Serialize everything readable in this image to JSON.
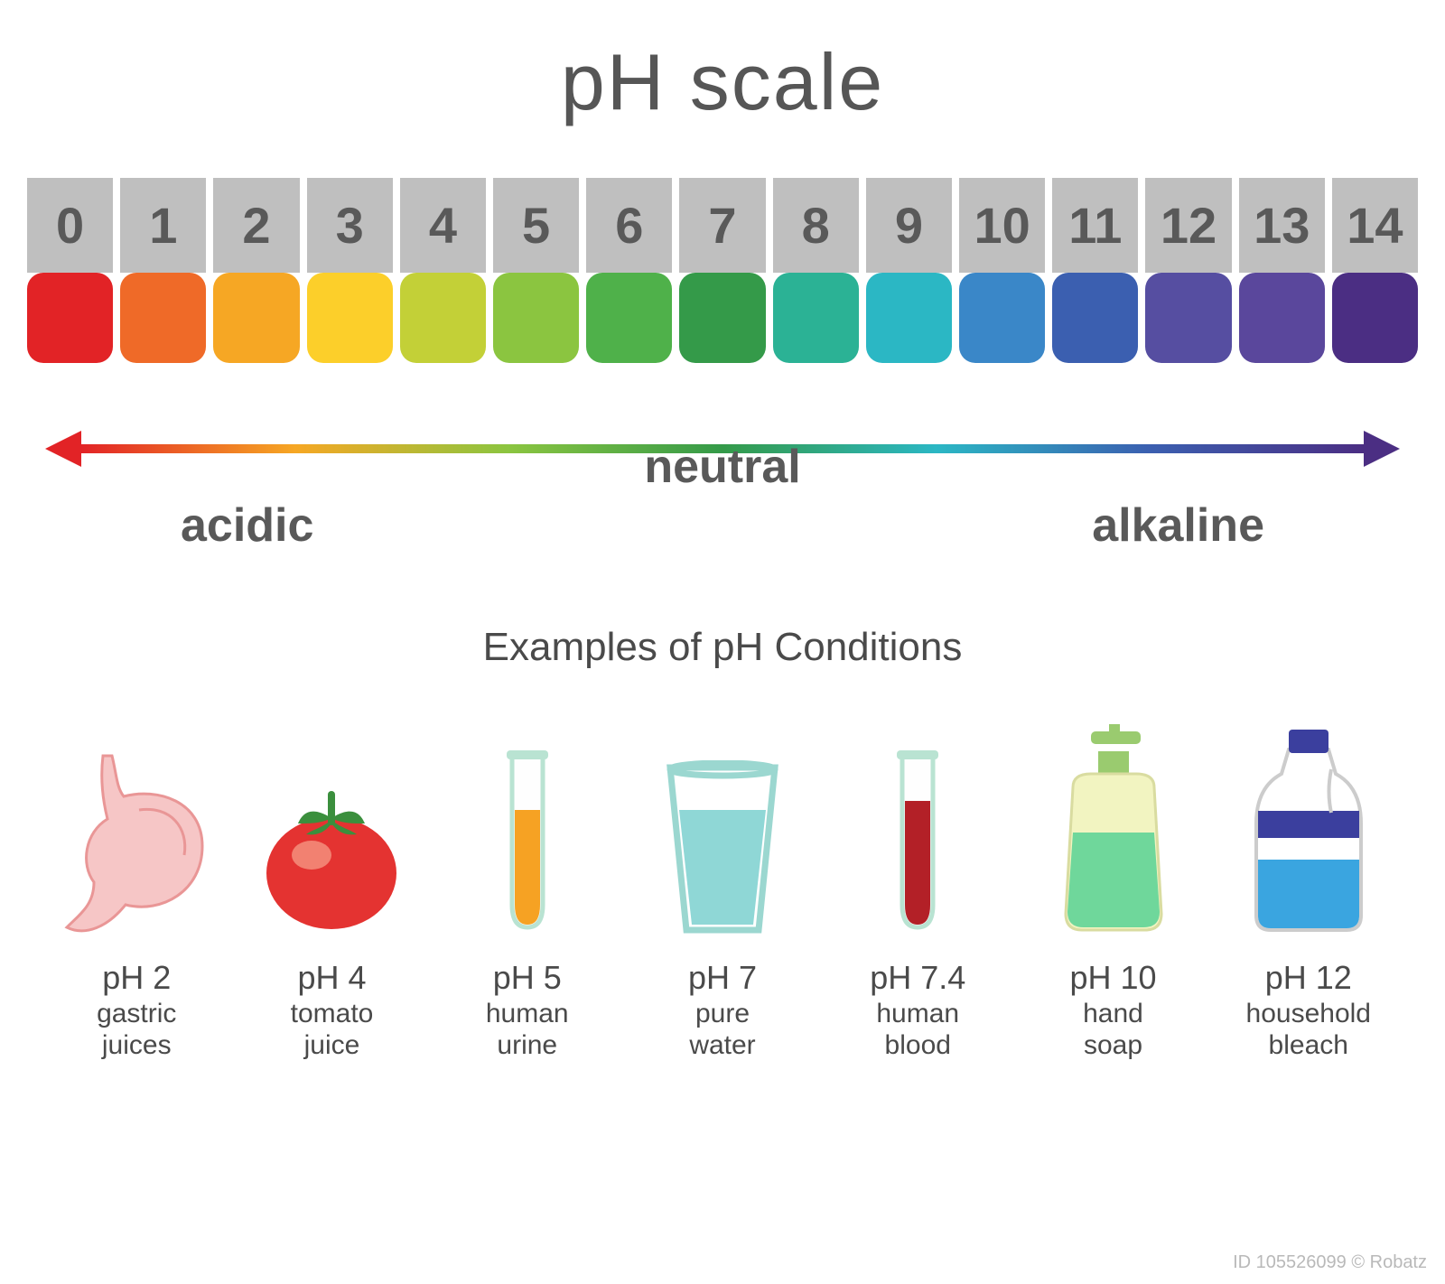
{
  "title": "pH scale",
  "title_color": "#565656",
  "title_fontsize": 88,
  "background_color": "#ffffff",
  "scale": {
    "label_bg": "#bfbfbf",
    "label_color": "#595959",
    "label_fontsize": 56,
    "swatch_height": 100,
    "swatch_radius": 18,
    "cells": [
      {
        "n": "0",
        "color": "#e22326"
      },
      {
        "n": "1",
        "color": "#ef6a28"
      },
      {
        "n": "2",
        "color": "#f6a724"
      },
      {
        "n": "3",
        "color": "#fccf2a"
      },
      {
        "n": "4",
        "color": "#c3d037"
      },
      {
        "n": "5",
        "color": "#8bc540"
      },
      {
        "n": "6",
        "color": "#4fb14a"
      },
      {
        "n": "7",
        "color": "#349a49"
      },
      {
        "n": "8",
        "color": "#2bb295"
      },
      {
        "n": "9",
        "color": "#2bb7c4"
      },
      {
        "n": "10",
        "color": "#3a87c8"
      },
      {
        "n": "11",
        "color": "#3b5fb0"
      },
      {
        "n": "12",
        "color": "#564ea1"
      },
      {
        "n": "13",
        "color": "#5a479c"
      },
      {
        "n": "14",
        "color": "#4b2e83"
      }
    ]
  },
  "arrow": {
    "gradient_stops": [
      "#e22326",
      "#f6a724",
      "#8bc540",
      "#349a49",
      "#2bb7c4",
      "#3b5fb0",
      "#4b2e83"
    ],
    "left_head_color": "#e22326",
    "right_head_color": "#4b2e83",
    "thickness": 10,
    "labels": {
      "acidic": "acidic",
      "neutral": "neutral",
      "alkaline": "alkaline",
      "color": "#595959",
      "fontsize": 52
    }
  },
  "examples_title": "Examples of pH Conditions",
  "examples_title_fontsize": 44,
  "examples": [
    {
      "ph": "pH 2",
      "name": "gastric\njuices",
      "icon": "stomach"
    },
    {
      "ph": "pH 4",
      "name": "tomato\njuice",
      "icon": "tomato"
    },
    {
      "ph": "pH 5",
      "name": "human\nurine",
      "icon": "tube-orange"
    },
    {
      "ph": "pH 7",
      "name": "pure\nwater",
      "icon": "glass"
    },
    {
      "ph": "pH 7.4",
      "name": "human\nblood",
      "icon": "tube-red"
    },
    {
      "ph": "pH  10",
      "name": "hand\nsoap",
      "icon": "soap"
    },
    {
      "ph": "pH  12",
      "name": "household\nbleach",
      "icon": "bleach"
    }
  ],
  "icon_colors": {
    "stomach_fill": "#f6c6c6",
    "stomach_stroke": "#e99696",
    "tomato_body": "#e43331",
    "tomato_shine": "#f48f7c",
    "tomato_leaf": "#3b8f3d",
    "tube_glass": "#b9e3d2",
    "tube_orange": "#f6a223",
    "tube_red": "#b32027",
    "glass_rim": "#9bd7d0",
    "glass_water": "#8fd7d6",
    "soap_body": "#f2f4c1",
    "soap_liquid": "#6fd79b",
    "soap_pump": "#9acb6f",
    "bleach_body": "#ffffff",
    "bleach_outline": "#cccccc",
    "bleach_cap": "#3b3f9e",
    "bleach_band": "#3b3f9e",
    "bleach_liquid": "#3aa5e0"
  },
  "watermark": "ID 105526099 © Robatz"
}
